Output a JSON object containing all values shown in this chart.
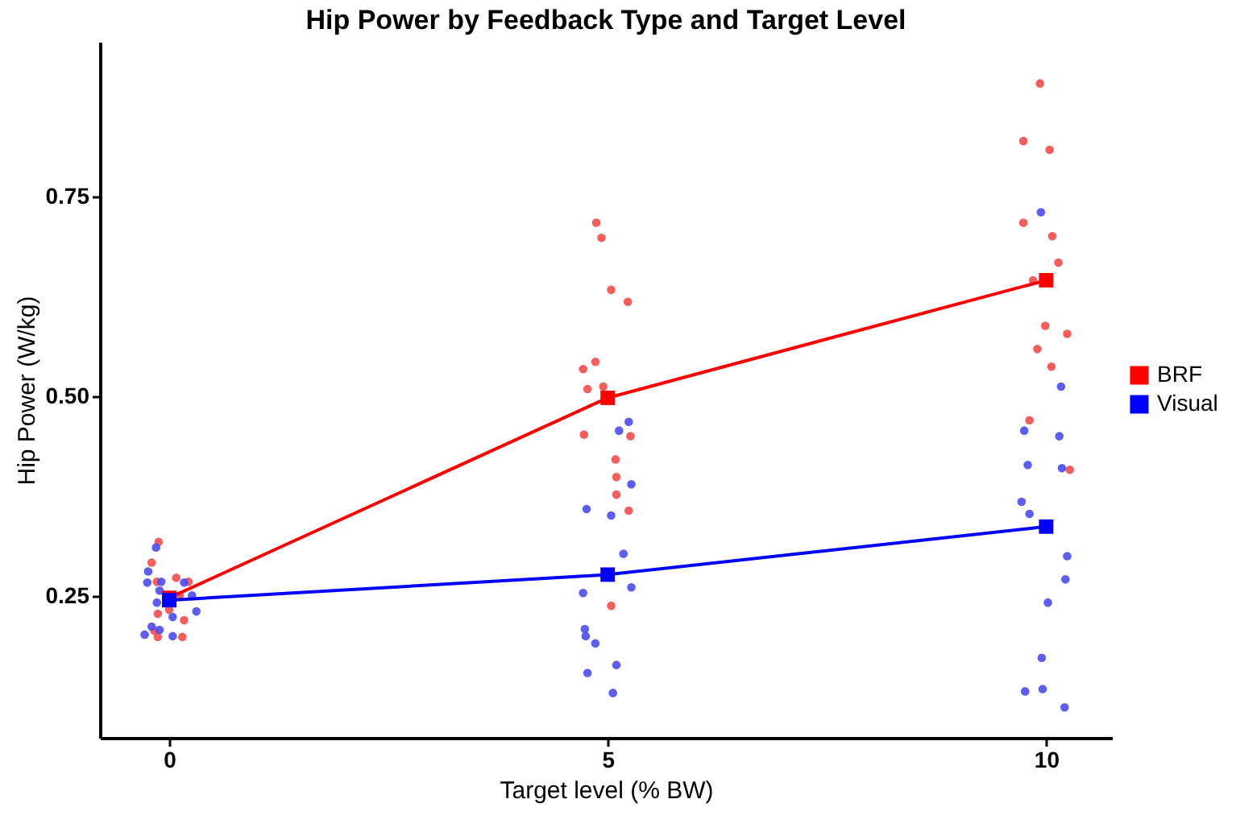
{
  "chart_data": {
    "type": "scatter",
    "title": "Hip Power by Feedback Type and Target Level",
    "xlabel": "Target level (% BW)",
    "ylabel": "Hip Power (W/kg)",
    "xlim": [
      -0.79,
      10.75
    ],
    "xticks": [
      0,
      5,
      10
    ],
    "ylim": [
      0.073,
      0.943
    ],
    "yticks": [
      {
        "value": 0.25,
        "label": "0.25"
      },
      {
        "value": 0.5,
        "label": "0.50"
      },
      {
        "value": 0.75,
        "label": "0.75"
      }
    ],
    "grid": false,
    "legend": "right",
    "series": [
      {
        "marker": "circle",
        "color": "#f54b4b",
        "x": [
          -0.12,
          -0.2,
          0.08,
          0.22,
          -0.14,
          0.12,
          0.0,
          -0.13,
          0.17,
          -0.17,
          -0.13,
          0.15,
          4.87,
          4.93,
          5.04,
          5.23,
          4.86,
          4.72,
          4.77,
          4.95,
          4.73,
          5.26,
          5.09,
          5.1,
          5.1,
          5.24,
          5.04,
          9.93,
          9.74,
          10.04,
          9.74,
          10.07,
          10.14,
          9.85,
          9.99,
          10.24,
          9.9,
          10.06,
          9.81,
          10.27
        ],
        "values": [
          0.318,
          0.292,
          0.273,
          0.268,
          0.268,
          0.251,
          0.233,
          0.228,
          0.22,
          0.207,
          0.199,
          0.199,
          0.717,
          0.698,
          0.633,
          0.618,
          0.543,
          0.534,
          0.509,
          0.512,
          0.452,
          0.45,
          0.421,
          0.399,
          0.377,
          0.357,
          0.238,
          0.891,
          0.819,
          0.808,
          0.717,
          0.7,
          0.667,
          0.645,
          0.588,
          0.578,
          0.559,
          0.537,
          0.47,
          0.408
        ]
      },
      {
        "marker": "circle",
        "color": "#4b4bf5",
        "x": [
          -0.15,
          -0.24,
          -0.09,
          -0.25,
          0.17,
          -0.11,
          0.26,
          -0.14,
          0.31,
          0.04,
          -0.2,
          -0.11,
          -0.28,
          0.04,
          5.24,
          5.13,
          5.27,
          4.76,
          5.04,
          5.18,
          4.72,
          5.27,
          4.74,
          4.75,
          4.86,
          4.77,
          5.1,
          5.06,
          9.94,
          10.17,
          9.75,
          10.15,
          9.79,
          10.18,
          9.72,
          9.81,
          10.24,
          10.22,
          10.02,
          9.95,
          9.76,
          9.96,
          10.21
        ],
        "values": [
          0.311,
          0.281,
          0.268,
          0.267,
          0.267,
          0.257,
          0.251,
          0.242,
          0.231,
          0.224,
          0.212,
          0.208,
          0.202,
          0.2,
          0.468,
          0.457,
          0.39,
          0.359,
          0.351,
          0.303,
          0.254,
          0.261,
          0.209,
          0.2,
          0.191,
          0.154,
          0.164,
          0.129,
          0.73,
          0.512,
          0.457,
          0.45,
          0.414,
          0.41,
          0.368,
          0.353,
          0.3,
          0.271,
          0.242,
          0.173,
          0.131,
          0.134,
          0.111
        ]
      },
      {
        "type": "line",
        "marker": "square",
        "name": "BRF",
        "color": "#ff0000",
        "x": [
          0,
          5,
          10
        ],
        "values": [
          0.248,
          0.498,
          0.645
        ]
      },
      {
        "type": "line",
        "marker": "square",
        "name": "Visual",
        "color": "#0000ff",
        "x": [
          0,
          5,
          10
        ],
        "values": [
          0.245,
          0.277,
          0.337
        ]
      }
    ]
  }
}
